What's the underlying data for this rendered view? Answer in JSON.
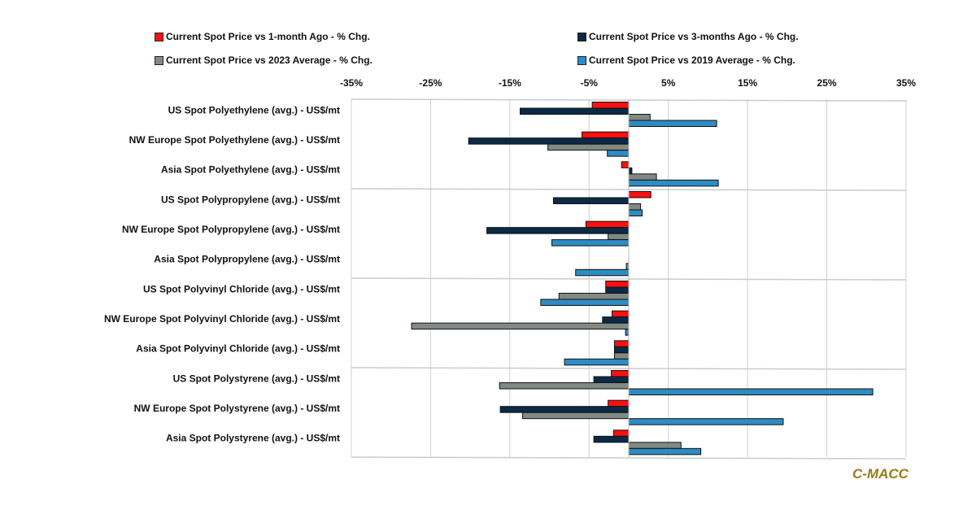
{
  "chart_data": {
    "type": "bar",
    "orientation": "horizontal",
    "title": "",
    "xlabel": "",
    "ylabel": "",
    "xlim": [
      -35,
      35
    ],
    "x_ticks": [
      "-35%",
      "-25%",
      "-15%",
      "-5%",
      "5%",
      "15%",
      "25%",
      "35%"
    ],
    "x_tick_values": [
      -35,
      -25,
      -15,
      -5,
      5,
      15,
      25,
      35
    ],
    "legend_position": "top",
    "categories": [
      "US Spot Polyethylene (avg.) - US$/mt",
      "NW Europe Spot Polyethylene (avg.) - US$/mt",
      "Asia Spot Polyethylene (avg.) - US$/mt",
      "US Spot Polypropylene (avg.) - US$/mt",
      "NW Europe Spot Polypropylene (avg.) - US$/mt",
      "Asia Spot Polypropylene (avg.) - US$/mt",
      "US Spot Polyvinyl Chloride (avg.) - US$/mt",
      "NW Europe Spot Polyvinyl Chloride (avg.)  - US$/mt",
      "Asia Spot Polyvinyl Chloride (avg.) - US$/mt",
      "US Spot Polystyrene (avg.) - US$/mt",
      "NW Europe Spot Polystyrene (avg.) - US$/mt",
      "Asia Spot Polystyrene (avg.) - US$/mt"
    ],
    "series": [
      {
        "name": "Current Spot Price vs 1-month Ago - % Chg.",
        "color": "#ff1010",
        "values": [
          -4.6,
          -5.9,
          -0.9,
          2.8,
          -5.4,
          0,
          -2.9,
          -2.1,
          -1.8,
          -2.2,
          -2.6,
          -1.9
        ]
      },
      {
        "name": "Current Spot Price vs 3-months Ago - % Chg.",
        "color": "#0b2a45",
        "values": [
          -13.7,
          -20.2,
          0.4,
          -9.5,
          -17.9,
          0,
          -2.9,
          -3.3,
          -1.8,
          -4.4,
          -16.2,
          -4.4
        ]
      },
      {
        "name": "Current Spot Price vs 2023 Average - % Chg.",
        "color": "#808a82",
        "values": [
          2.7,
          -10.2,
          3.5,
          1.5,
          -2.6,
          -0.3,
          -8.8,
          -27.4,
          -1.8,
          -16.3,
          -13.4,
          6.6
        ]
      },
      {
        "name": "Current Spot Price vs 2019 Average - % Chg.",
        "color": "#2e8cc2",
        "values": [
          11.1,
          -2.7,
          11.3,
          1.7,
          -9.7,
          -6.7,
          -11.1,
          -0.4,
          -8.1,
          30.8,
          19.5,
          9.1
        ]
      }
    ]
  },
  "brand": "C-MACC"
}
